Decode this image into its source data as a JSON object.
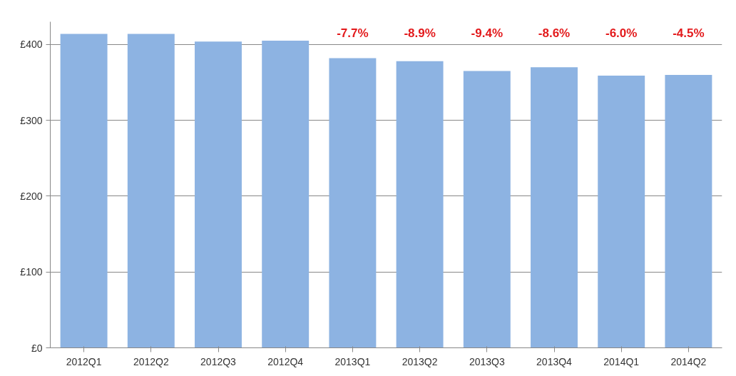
{
  "chart_data": {
    "type": "bar",
    "categories": [
      "2012Q1",
      "2012Q2",
      "2012Q3",
      "2012Q4",
      "2013Q1",
      "2013Q2",
      "2013Q3",
      "2013Q4",
      "2014Q1",
      "2014Q2"
    ],
    "values": [
      414,
      414,
      404,
      405,
      382,
      378,
      365,
      370,
      359,
      360
    ],
    "color": "#8db3e2",
    "ylim": [
      0,
      430
    ],
    "yticks": [
      {
        "value": 0,
        "label": "£0"
      },
      {
        "value": 100,
        "label": "£100"
      },
      {
        "value": 200,
        "label": "£200"
      },
      {
        "value": 300,
        "label": "£300"
      },
      {
        "value": 400,
        "label": "£400"
      }
    ],
    "grid": "y",
    "annotations": [
      "-7.7%",
      "-8.9%",
      "-9.4%",
      "-8.6%",
      "-6.0%",
      "-4.5%"
    ]
  }
}
